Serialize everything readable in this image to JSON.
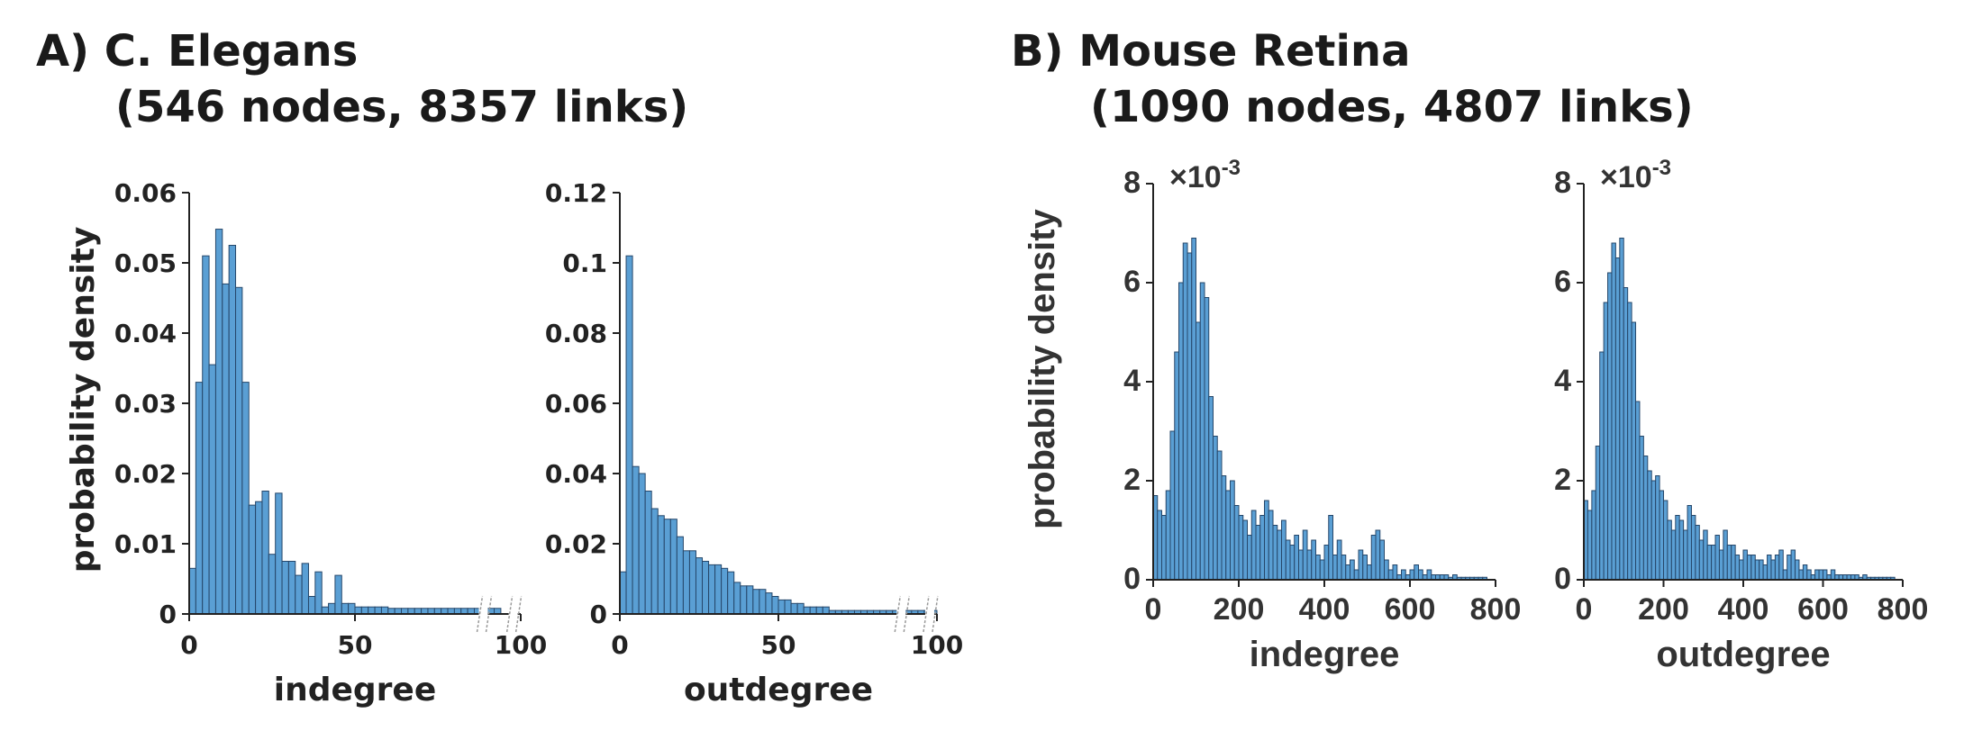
{
  "panels": {
    "a": {
      "title_line1": "A) C. Elegans",
      "title_line2": "(546 nodes, 8357 links)"
    },
    "b": {
      "title_line1": "B) Mouse Retina",
      "title_line2": "(1090 nodes, 4807 links)"
    }
  },
  "colors": {
    "bar": "#5a9fd4",
    "bar_edge": "#26476a",
    "axis": "#222222"
  },
  "chart_data": [
    {
      "type": "bar",
      "panel": "A",
      "xlabel": "indegree",
      "ylabel": "probability density",
      "xlim": [
        0,
        100
      ],
      "ylim": [
        0,
        0.06
      ],
      "xticks": [
        "0",
        "50",
        "100"
      ],
      "yticks": [
        "0",
        "0.01",
        "0.02",
        "0.03",
        "0.04",
        "0.05",
        "0.06"
      ],
      "axis_break_marks": true,
      "bin_width": 2,
      "x": [
        0,
        2,
        4,
        6,
        8,
        10,
        12,
        14,
        16,
        18,
        20,
        22,
        24,
        26,
        28,
        30,
        32,
        34,
        36,
        38,
        40,
        42,
        44,
        46,
        48,
        50,
        52,
        54,
        56,
        58,
        60,
        62,
        64,
        66,
        68,
        70,
        72,
        74,
        76,
        78,
        80,
        82,
        84,
        86,
        88,
        90,
        92
      ],
      "values": [
        0.0065,
        0.033,
        0.051,
        0.0355,
        0.0548,
        0.047,
        0.0525,
        0.0465,
        0.033,
        0.0155,
        0.016,
        0.0175,
        0.0085,
        0.0172,
        0.0075,
        0.0075,
        0.0055,
        0.0072,
        0.0025,
        0.006,
        0.001,
        0.0015,
        0.0055,
        0.0015,
        0.0015,
        0.001,
        0.001,
        0.001,
        0.001,
        0.001,
        0.0008,
        0.0008,
        0.0008,
        0.0008,
        0.0008,
        0.0008,
        0.0008,
        0.0008,
        0.0008,
        0.0008,
        0.0008,
        0.0008,
        0.0008,
        0.0008,
        0.0008,
        0.0008,
        0.0008
      ]
    },
    {
      "type": "bar",
      "panel": "A",
      "xlabel": "outdegree",
      "ylabel": "",
      "xlim": [
        0,
        100
      ],
      "ylim": [
        0,
        0.12
      ],
      "xticks": [
        "0",
        "50",
        "100"
      ],
      "yticks": [
        "0",
        "0.02",
        "0.04",
        "0.06",
        "0.08",
        "0.1",
        "0.12"
      ],
      "axis_break_marks": true,
      "bin_width": 2,
      "x": [
        0,
        2,
        4,
        6,
        8,
        10,
        12,
        14,
        16,
        18,
        20,
        22,
        24,
        26,
        28,
        30,
        32,
        34,
        36,
        38,
        40,
        42,
        44,
        46,
        48,
        50,
        52,
        54,
        56,
        58,
        60,
        62,
        64,
        66,
        68,
        70,
        72,
        74,
        76,
        78,
        80,
        82,
        84,
        86,
        88,
        90,
        92,
        94,
        96,
        98
      ],
      "values": [
        0.012,
        0.102,
        0.042,
        0.04,
        0.035,
        0.03,
        0.028,
        0.027,
        0.027,
        0.022,
        0.018,
        0.018,
        0.016,
        0.015,
        0.014,
        0.014,
        0.013,
        0.012,
        0.009,
        0.008,
        0.008,
        0.007,
        0.007,
        0.006,
        0.005,
        0.004,
        0.004,
        0.003,
        0.003,
        0.002,
        0.002,
        0.002,
        0.002,
        0.001,
        0.001,
        0.001,
        0.001,
        0.001,
        0.001,
        0.001,
        0.001,
        0.001,
        0.001,
        0.001,
        0.001,
        0.001,
        0.001,
        0.001,
        0.001,
        0.001
      ]
    },
    {
      "type": "bar",
      "panel": "B",
      "xlabel": "indegree",
      "ylabel": "probability density",
      "xlim": [
        0,
        800
      ],
      "ylim": [
        0,
        8
      ],
      "multiplier": "×10",
      "multiplier_exponent": "-3",
      "xticks": [
        "0",
        "200",
        "400",
        "600",
        "800"
      ],
      "yticks": [
        "0",
        "2",
        "4",
        "6",
        "8"
      ],
      "bin_width": 10,
      "x": [
        0,
        10,
        20,
        30,
        40,
        50,
        60,
        70,
        80,
        90,
        100,
        110,
        120,
        130,
        140,
        150,
        160,
        170,
        180,
        190,
        200,
        210,
        220,
        230,
        240,
        250,
        260,
        270,
        280,
        290,
        300,
        310,
        320,
        330,
        340,
        350,
        360,
        370,
        380,
        390,
        400,
        410,
        420,
        430,
        440,
        450,
        460,
        470,
        480,
        490,
        500,
        510,
        520,
        530,
        540,
        550,
        560,
        570,
        580,
        590,
        600,
        610,
        620,
        630,
        640,
        650,
        660,
        670,
        680,
        690,
        700,
        710,
        720,
        730,
        740,
        750,
        760,
        770
      ],
      "values": [
        1.7,
        1.4,
        1.3,
        1.8,
        3.0,
        4.6,
        6.0,
        6.8,
        6.6,
        6.9,
        5.2,
        6.0,
        5.7,
        3.7,
        2.9,
        2.6,
        2.1,
        1.8,
        2.0,
        1.5,
        1.3,
        1.2,
        0.9,
        1.4,
        1.1,
        1.3,
        1.6,
        1.4,
        1.1,
        1.0,
        1.2,
        0.8,
        0.7,
        0.9,
        0.6,
        1.0,
        0.6,
        0.8,
        0.5,
        0.4,
        0.7,
        1.3,
        0.5,
        0.8,
        0.5,
        0.3,
        0.4,
        0.2,
        0.6,
        0.5,
        0.3,
        0.9,
        1.0,
        0.8,
        0.4,
        0.2,
        0.3,
        0.1,
        0.2,
        0.1,
        0.2,
        0.3,
        0.2,
        0.1,
        0.2,
        0.1,
        0.1,
        0.1,
        0.1,
        0.05,
        0.1,
        0.05,
        0.05,
        0.05,
        0.05,
        0.05,
        0.05,
        0.05
      ]
    },
    {
      "type": "bar",
      "panel": "B",
      "xlabel": "outdegree",
      "ylabel": "",
      "xlim": [
        0,
        800
      ],
      "ylim": [
        0,
        8
      ],
      "multiplier": "×10",
      "multiplier_exponent": "-3",
      "xticks": [
        "0",
        "200",
        "400",
        "600",
        "800"
      ],
      "yticks": [
        "0",
        "2",
        "4",
        "6",
        "8"
      ],
      "bin_width": 10,
      "x": [
        0,
        10,
        20,
        30,
        40,
        50,
        60,
        70,
        80,
        90,
        100,
        110,
        120,
        130,
        140,
        150,
        160,
        170,
        180,
        190,
        200,
        210,
        220,
        230,
        240,
        250,
        260,
        270,
        280,
        290,
        300,
        310,
        320,
        330,
        340,
        350,
        360,
        370,
        380,
        390,
        400,
        410,
        420,
        430,
        440,
        450,
        460,
        470,
        480,
        490,
        500,
        510,
        520,
        530,
        540,
        550,
        560,
        570,
        580,
        590,
        600,
        610,
        620,
        630,
        640,
        650,
        660,
        670,
        680,
        690,
        700,
        710,
        720,
        730,
        740,
        750,
        760,
        770
      ],
      "values": [
        1.6,
        1.4,
        1.8,
        2.7,
        4.6,
        5.6,
        6.2,
        6.8,
        6.5,
        6.9,
        5.9,
        5.6,
        5.2,
        3.6,
        2.9,
        2.5,
        2.2,
        2.0,
        2.1,
        1.8,
        1.6,
        1.2,
        1.0,
        1.3,
        1.2,
        1.0,
        1.5,
        1.3,
        1.1,
        0.8,
        1.0,
        0.7,
        0.7,
        0.9,
        0.6,
        1.0,
        0.7,
        0.7,
        0.5,
        0.4,
        0.6,
        0.5,
        0.5,
        0.4,
        0.4,
        0.3,
        0.5,
        0.4,
        0.5,
        0.6,
        0.2,
        0.5,
        0.6,
        0.4,
        0.2,
        0.3,
        0.2,
        0.1,
        0.2,
        0.2,
        0.2,
        0.1,
        0.2,
        0.1,
        0.1,
        0.1,
        0.1,
        0.1,
        0.1,
        0.05,
        0.1,
        0.05,
        0.05,
        0.05,
        0.05,
        0.05,
        0.05,
        0.05
      ]
    }
  ]
}
